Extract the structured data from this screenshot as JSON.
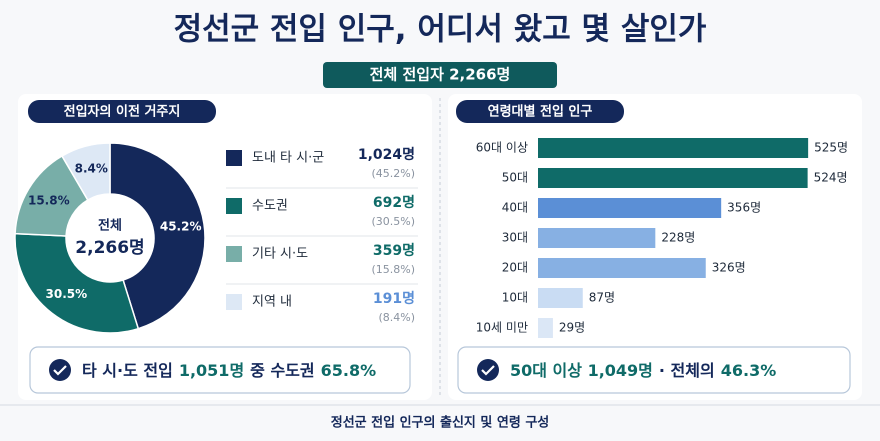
{
  "title": "정선군 전입 인구, 어디서 왔고 몇 살인가",
  "subtitle": "전체 전입자 2,266명",
  "chart_data": [
    {
      "type": "pie",
      "title": "전입자의 이전 거주지",
      "categories": [
        "도내 타 시·군",
        "수도권",
        "기타 시·도",
        "지역 내"
      ],
      "values": [
        1024,
        692,
        359,
        191
      ],
      "value_labels": [
        "1,024명",
        "692명",
        "359명",
        "191명"
      ],
      "shares": [
        45.2,
        30.5,
        15.8,
        8.4
      ],
      "share_labels": [
        "45.2%",
        "30.5%",
        "15.8%",
        "8.4%"
      ],
      "legend_share_labels": [
        "(45.2%)",
        "(30.5%)",
        "(15.8%)",
        "(8.4%)"
      ],
      "colors": [
        "#14285a",
        "#0f6b68",
        "#78aea8",
        "#dde8f5"
      ],
      "value_label_colors": [
        "#14285a",
        "#0f6b68",
        "#0f6b68",
        "#5b8fd6"
      ],
      "center_label": "전체",
      "center_value_label": "2,266명"
    },
    {
      "type": "hbar",
      "title": "연령대별 전입 인구",
      "categories": [
        "60대 이상",
        "50대",
        "40대",
        "30대",
        "20대",
        "10대",
        "10세 미만"
      ],
      "values": [
        525,
        524,
        356,
        228,
        326,
        87,
        29
      ],
      "value_labels": [
        "525명",
        "524명",
        "356명",
        "228명",
        "326명",
        "87명",
        "29명"
      ],
      "colors": [
        "#0f6b68",
        "#0f6b68",
        "#5b8fd6",
        "#87b0e3",
        "#87b0e3",
        "#c9dcf3",
        "#dbe7f6"
      ],
      "xlim": [
        0,
        550
      ]
    }
  ],
  "callouts": [
    [
      {
        "text": "타 시·도 전입",
        "em": false
      },
      {
        "text": "1,051명",
        "em": true
      },
      {
        "text": "중 수도권",
        "em": false
      },
      {
        "text": "65.8%",
        "em": true
      }
    ],
    [
      {
        "text": "50대 이상 1,049명",
        "em": true
      },
      {
        "text": "· 전체의",
        "em": false
      },
      {
        "text": "46.3%",
        "em": true
      }
    ]
  ],
  "footer": "정선군 전입 인구의 출신지 및 연령 구성"
}
